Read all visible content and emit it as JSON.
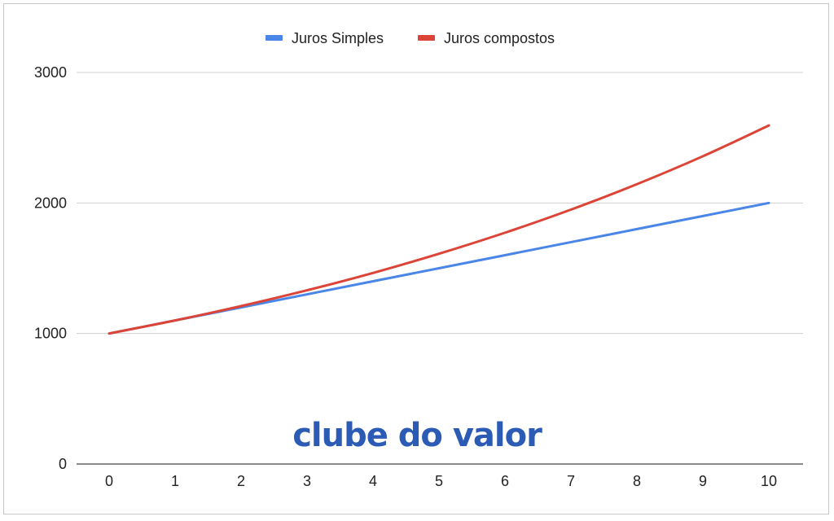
{
  "chart_data": {
    "type": "line",
    "x": [
      0,
      1,
      2,
      3,
      4,
      5,
      6,
      7,
      8,
      9,
      10
    ],
    "xticks": [
      "0",
      "1",
      "2",
      "3",
      "4",
      "5",
      "6",
      "7",
      "8",
      "9",
      "10"
    ],
    "yticks": [
      0,
      1000,
      2000,
      3000
    ],
    "ylim": [
      0,
      3000
    ],
    "xlim": [
      0,
      10
    ],
    "title": "",
    "xlabel": "",
    "ylabel": "",
    "grid": true,
    "legend_position": "top-center",
    "series": [
      {
        "name": "Juros Simples",
        "color": "#4a86e8",
        "values": [
          1000,
          1100,
          1200,
          1300,
          1400,
          1500,
          1600,
          1700,
          1800,
          1900,
          2000
        ]
      },
      {
        "name": "Juros compostos",
        "color": "#db4437",
        "values": [
          1000,
          1100,
          1210,
          1331,
          1464,
          1611,
          1772,
          1949,
          2144,
          2358,
          2594
        ]
      }
    ]
  },
  "watermark": {
    "text": "clube do valor",
    "color": "#2b5bb5"
  }
}
